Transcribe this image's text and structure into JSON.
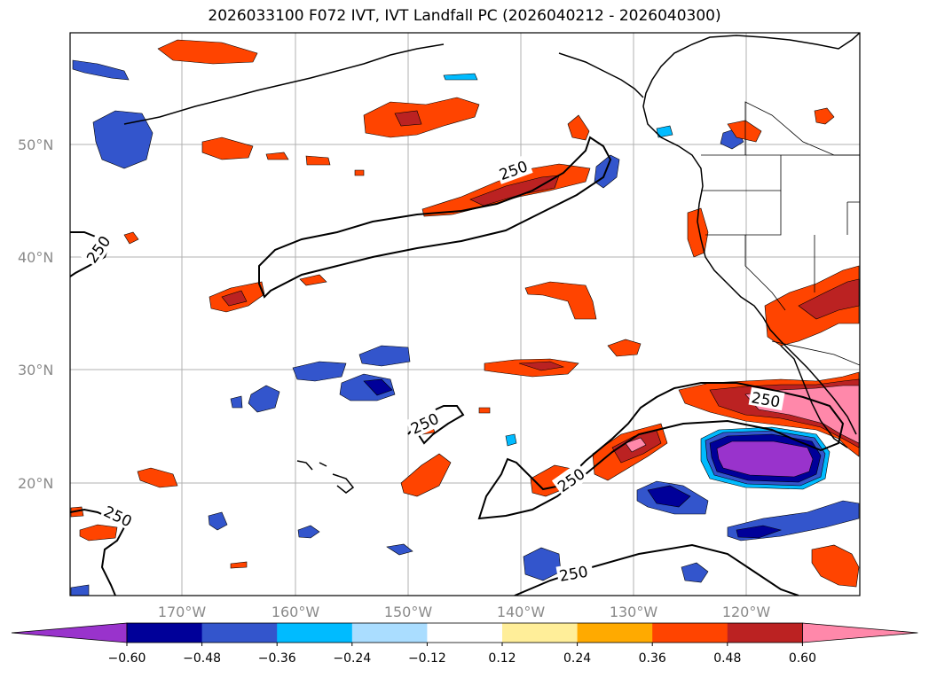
{
  "title": "2026033100 F072 IVT, IVT Landfall PC (2026040212 - 2026040300)",
  "map": {
    "contour_label": "250",
    "lat_labels": [
      "50°N",
      "40°N",
      "30°N",
      "20°N"
    ],
    "lon_labels": [
      "170°W",
      "160°W",
      "150°W",
      "140°W",
      "130°W",
      "120°W"
    ]
  },
  "colorbar": {
    "colors": [
      "#9933cc",
      "#000099",
      "#3355cc",
      "#00bbff",
      "#aaddff",
      "#ffffff",
      "#ffee99",
      "#ffaa00",
      "#ff4400",
      "#bb2222",
      "#ff88aa"
    ],
    "labels": [
      "−0.60",
      "−0.48",
      "−0.36",
      "−0.24",
      "−0.12",
      "0.12",
      "0.24",
      "0.36",
      "0.48",
      "0.60"
    ]
  }
}
